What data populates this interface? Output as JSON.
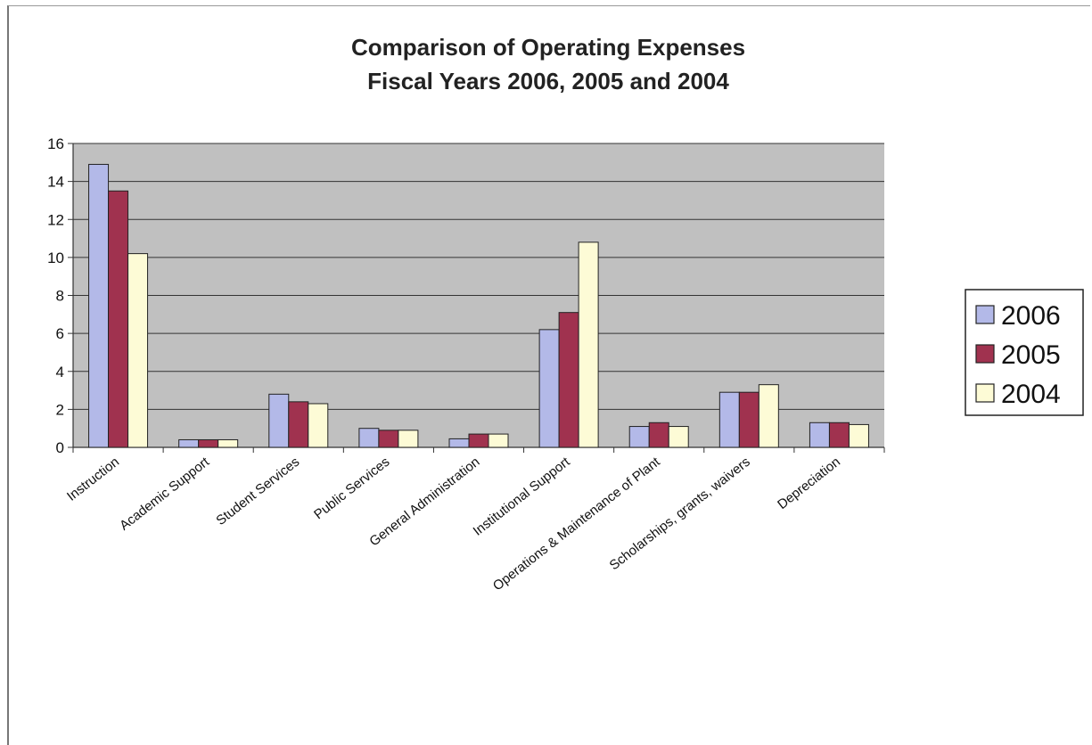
{
  "chart_data": {
    "type": "bar",
    "title_lines": [
      "Comparison of Operating Expenses",
      "Fiscal Years 2006, 2005 and 2004"
    ],
    "categories": [
      "Instruction",
      "Academic Support",
      "Student Services",
      "Public Services",
      "General Administration",
      "Institutional Support",
      "Operations & Maintenance of Plant",
      "Scholarships, grants, waivers",
      "Depreciation"
    ],
    "series": [
      {
        "name": "2006",
        "color": "#b3b9e8",
        "values": [
          14.9,
          0.4,
          2.8,
          1.0,
          0.45,
          6.2,
          1.1,
          2.9,
          1.3
        ]
      },
      {
        "name": "2005",
        "color": "#a0324f",
        "values": [
          13.5,
          0.4,
          2.4,
          0.9,
          0.7,
          7.1,
          1.3,
          2.9,
          1.3
        ]
      },
      {
        "name": "2004",
        "color": "#fdfbd6",
        "values": [
          10.2,
          0.4,
          2.3,
          0.9,
          0.7,
          10.8,
          1.1,
          3.3,
          1.2
        ]
      }
    ],
    "y_ticks": [
      "0",
      "2",
      "4",
      "6",
      "8",
      "10",
      "12",
      "14",
      "16"
    ],
    "ylim": [
      0,
      16
    ],
    "grid": true,
    "legend_position": "right",
    "plot_background": "#c0c0c0"
  }
}
